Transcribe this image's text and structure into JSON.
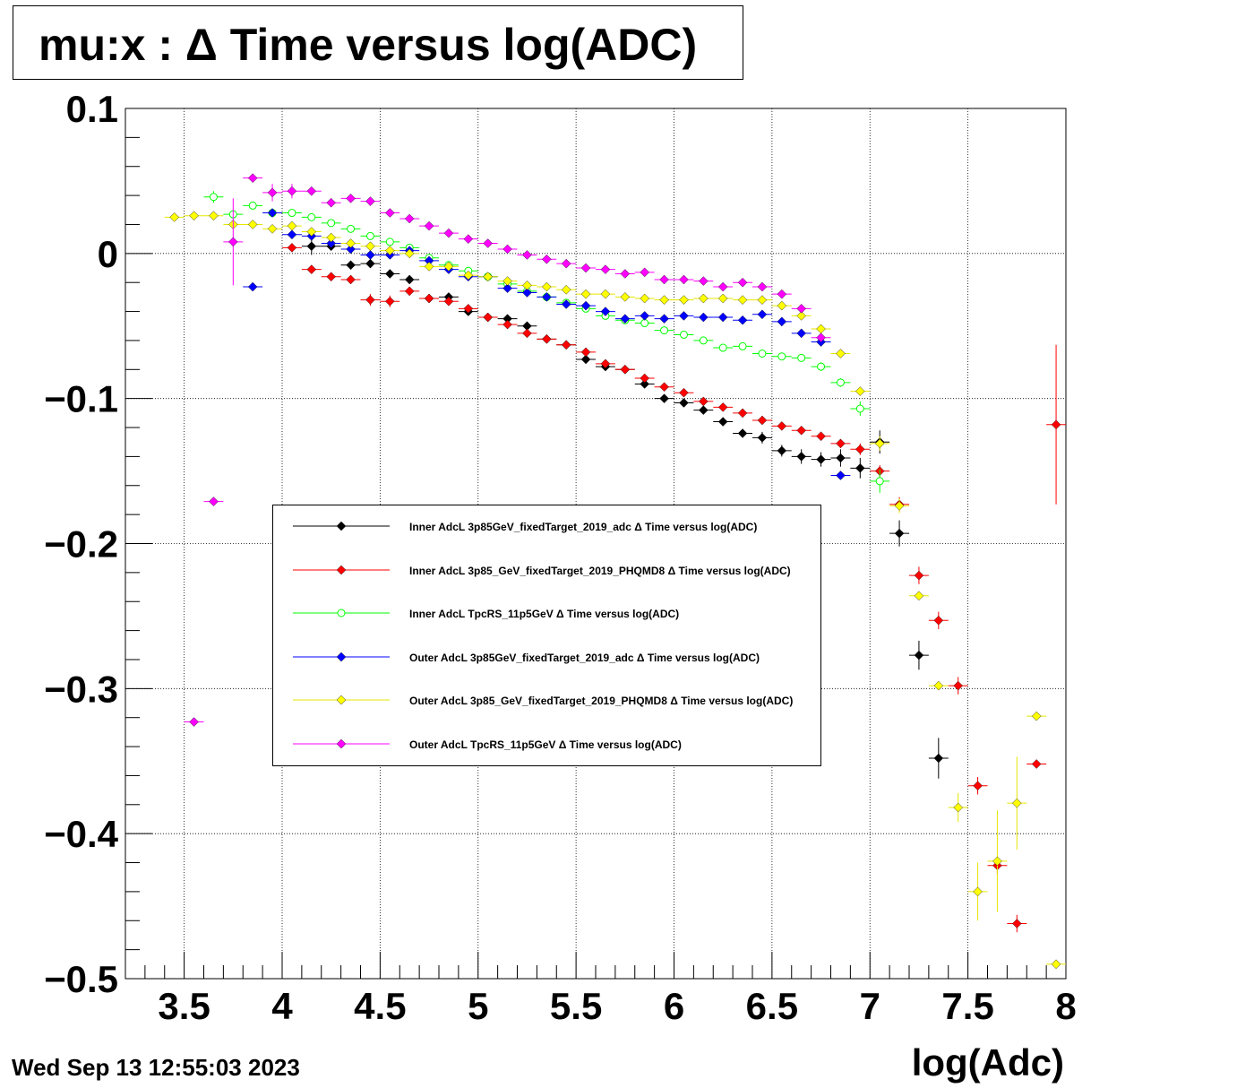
{
  "title": "mu:x : Δ Time versus log(ADC)",
  "timestamp": "Wed Sep 13 12:55:03 2023",
  "chart_data": {
    "type": "scatter",
    "title": "mu:x : Δ Time versus log(ADC)",
    "xlabel": "log(Adc)",
    "ylabel": "",
    "xlim": [
      3.2,
      8.0
    ],
    "ylim": [
      -0.5,
      0.1
    ],
    "grid": true,
    "legend_position": "center",
    "x_ticks": [
      3.5,
      4,
      4.5,
      5,
      5.5,
      6,
      6.5,
      7,
      7.5,
      8
    ],
    "x_tick_labels": [
      "3.5",
      "4",
      "4.5",
      "5",
      "5.5",
      "6",
      "6.5",
      "7",
      "7.5",
      "8"
    ],
    "y_ticks": [
      0.1,
      0,
      -0.1,
      -0.2,
      -0.3,
      -0.4,
      -0.5
    ],
    "y_tick_labels": [
      "0.1",
      "0",
      "−0.1",
      "−0.2",
      "−0.3",
      "−0.4",
      "−0.5"
    ],
    "series": [
      {
        "name": "Inner AdcL 3p85GeV_fixedTarget_2019_adc Δ Time versus log(ADC)",
        "color": "#000000",
        "marker": "filled-diamond",
        "x": [
          4.15,
          4.25,
          4.35,
          4.45,
          4.55,
          4.65,
          4.75,
          4.85,
          4.95,
          5.05,
          5.15,
          5.25,
          5.35,
          5.45,
          5.55,
          5.65,
          5.75,
          5.85,
          5.95,
          6.05,
          6.15,
          6.25,
          6.35,
          6.45,
          6.55,
          6.65,
          6.75,
          6.85,
          6.95,
          7.05,
          7.15,
          7.25,
          7.35
        ],
        "y": [
          0.005,
          0.005,
          -0.008,
          -0.007,
          -0.014,
          -0.018,
          -0.031,
          -0.03,
          -0.04,
          -0.044,
          -0.045,
          -0.05,
          -0.059,
          -0.063,
          -0.073,
          -0.078,
          -0.08,
          -0.09,
          -0.1,
          -0.103,
          -0.108,
          -0.116,
          -0.124,
          -0.127,
          -0.136,
          -0.14,
          -0.142,
          -0.141,
          -0.148,
          -0.13,
          -0.193,
          -0.277,
          -0.348
        ],
        "yerr": [
          0.006,
          0.003,
          0.003,
          0.003,
          0.003,
          0.003,
          0.003,
          0.002,
          0.002,
          0.002,
          0.002,
          0.002,
          0.002,
          0.002,
          0.002,
          0.002,
          0.002,
          0.002,
          0.002,
          0.002,
          0.002,
          0.003,
          0.003,
          0.004,
          0.004,
          0.005,
          0.005,
          0.006,
          0.007,
          0.008,
          0.009,
          0.01,
          0.014
        ]
      },
      {
        "name": "Inner AdcL 3p85_GeV_fixedTarget_2019_PHQMD8 Δ Time versus log(ADC)",
        "color": "#ff0000",
        "marker": "filled-diamond",
        "x": [
          4.05,
          4.15,
          4.25,
          4.35,
          4.45,
          4.55,
          4.65,
          4.75,
          4.85,
          4.95,
          5.05,
          5.15,
          5.25,
          5.35,
          5.45,
          5.55,
          5.65,
          5.75,
          5.85,
          5.95,
          6.05,
          6.15,
          6.25,
          6.35,
          6.45,
          6.55,
          6.65,
          6.75,
          6.85,
          6.95,
          7.05,
          7.15,
          7.25,
          7.35,
          7.45,
          7.55,
          7.65,
          7.75,
          7.85,
          7.95
        ],
        "y": [
          0.004,
          -0.011,
          -0.016,
          -0.018,
          -0.032,
          -0.033,
          -0.026,
          -0.031,
          -0.033,
          -0.038,
          -0.044,
          -0.049,
          -0.055,
          -0.059,
          -0.063,
          -0.068,
          -0.076,
          -0.08,
          -0.086,
          -0.092,
          -0.096,
          -0.102,
          -0.106,
          -0.11,
          -0.115,
          -0.119,
          -0.122,
          -0.126,
          -0.131,
          -0.135,
          -0.15,
          -0.173,
          -0.222,
          -0.253,
          -0.298,
          -0.367,
          -0.422,
          -0.462,
          -0.352,
          -0.118
        ],
        "yerr": [
          0.003,
          0.003,
          0.003,
          0.003,
          0.004,
          0.004,
          0.003,
          0.003,
          0.003,
          0.002,
          0.002,
          0.002,
          0.002,
          0.002,
          0.002,
          0.002,
          0.002,
          0.002,
          0.002,
          0.002,
          0.002,
          0.002,
          0.002,
          0.002,
          0.002,
          0.002,
          0.002,
          0.003,
          0.003,
          0.004,
          0.004,
          0.005,
          0.006,
          0.006,
          0.006,
          0.006,
          0.006,
          0.006,
          0.003,
          0.055
        ]
      },
      {
        "name": "Inner AdcL TpcRS_11p5GeV Δ Time versus log(ADC)",
        "color": "#00ff00",
        "marker": "open-circle",
        "x": [
          3.65,
          3.75,
          3.85,
          3.95,
          4.05,
          4.15,
          4.25,
          4.35,
          4.45,
          4.55,
          4.65,
          4.75,
          4.85,
          4.95,
          5.05,
          5.15,
          5.25,
          5.35,
          5.45,
          5.55,
          5.65,
          5.75,
          5.85,
          5.95,
          6.05,
          6.15,
          6.25,
          6.35,
          6.45,
          6.55,
          6.65,
          6.75,
          6.85,
          6.95,
          7.05
        ],
        "y": [
          0.039,
          0.027,
          0.033,
          0.028,
          0.028,
          0.025,
          0.021,
          0.017,
          0.012,
          0.008,
          0.004,
          -0.003,
          -0.008,
          -0.012,
          -0.016,
          -0.021,
          -0.026,
          -0.03,
          -0.034,
          -0.038,
          -0.043,
          -0.046,
          -0.048,
          -0.053,
          -0.056,
          -0.06,
          -0.065,
          -0.064,
          -0.069,
          -0.071,
          -0.072,
          -0.078,
          -0.089,
          -0.107,
          -0.157
        ],
        "yerr": [
          0.004,
          0.003,
          0.002,
          0.002,
          0.002,
          0.002,
          0.002,
          0.002,
          0.002,
          0.002,
          0.002,
          0.002,
          0.002,
          0.002,
          0.002,
          0.002,
          0.002,
          0.002,
          0.002,
          0.002,
          0.002,
          0.002,
          0.002,
          0.002,
          0.002,
          0.002,
          0.002,
          0.002,
          0.002,
          0.002,
          0.002,
          0.003,
          0.003,
          0.005,
          0.008
        ]
      },
      {
        "name": "Outer AdcL 3p85GeV_fixedTarget_2019_adc Δ Time versus log(ADC)",
        "color": "#0000ff",
        "marker": "filled-diamond",
        "x": [
          3.85,
          3.95,
          4.05,
          4.15,
          4.25,
          4.35,
          4.45,
          4.55,
          4.65,
          4.75,
          4.85,
          4.95,
          5.05,
          5.15,
          5.25,
          5.35,
          5.45,
          5.55,
          5.65,
          5.75,
          5.85,
          5.95,
          6.05,
          6.15,
          6.25,
          6.35,
          6.45,
          6.55,
          6.65,
          6.75,
          6.85
        ],
        "y": [
          -0.023,
          0.028,
          0.013,
          0.012,
          0.007,
          0.003,
          -0.001,
          -0.001,
          0.002,
          -0.005,
          -0.011,
          -0.016,
          -0.016,
          -0.024,
          -0.027,
          -0.03,
          -0.035,
          -0.036,
          -0.04,
          -0.045,
          -0.043,
          -0.045,
          -0.043,
          -0.044,
          -0.044,
          -0.046,
          -0.042,
          -0.047,
          -0.055,
          -0.061,
          -0.153
        ],
        "yerr": [
          0.002,
          0.002,
          0.002,
          0.002,
          0.002,
          0.002,
          0.002,
          0.002,
          0.002,
          0.002,
          0.002,
          0.002,
          0.002,
          0.002,
          0.002,
          0.002,
          0.002,
          0.002,
          0.002,
          0.002,
          0.002,
          0.002,
          0.002,
          0.002,
          0.002,
          0.002,
          0.002,
          0.003,
          0.003,
          0.003,
          0.002
        ]
      },
      {
        "name": "Outer AdcL 3p85_GeV_fixedTarget_2019_PHQMD8 Δ Time versus log(ADC)",
        "color": "#ffff00",
        "marker": "filled-diamond",
        "x": [
          3.45,
          3.55,
          3.65,
          3.75,
          3.85,
          3.95,
          4.05,
          4.15,
          4.25,
          4.35,
          4.45,
          4.55,
          4.65,
          4.75,
          4.85,
          4.95,
          5.05,
          5.15,
          5.25,
          5.35,
          5.45,
          5.55,
          5.65,
          5.75,
          5.85,
          5.95,
          6.05,
          6.15,
          6.25,
          6.35,
          6.45,
          6.55,
          6.65,
          6.75,
          6.85,
          6.95,
          7.05,
          7.15,
          7.25,
          7.35,
          7.45,
          7.55,
          7.65,
          7.75,
          7.85,
          7.95
        ],
        "y": [
          0.025,
          0.026,
          0.026,
          0.02,
          0.02,
          0.017,
          0.019,
          0.015,
          0.011,
          0.007,
          0.005,
          0.002,
          0.0,
          -0.009,
          -0.009,
          -0.015,
          -0.016,
          -0.019,
          -0.022,
          -0.023,
          -0.025,
          -0.028,
          -0.028,
          -0.03,
          -0.031,
          -0.032,
          -0.032,
          -0.031,
          -0.031,
          -0.032,
          -0.032,
          -0.036,
          -0.043,
          -0.052,
          -0.069,
          -0.095,
          -0.131,
          -0.174,
          -0.236,
          -0.298,
          -0.382,
          -0.44,
          -0.419,
          -0.379,
          -0.319,
          -0.49
        ],
        "yerr": [
          0.003,
          0.003,
          0.003,
          0.002,
          0.002,
          0.002,
          0.002,
          0.002,
          0.002,
          0.002,
          0.002,
          0.002,
          0.002,
          0.002,
          0.002,
          0.002,
          0.002,
          0.002,
          0.002,
          0.002,
          0.002,
          0.002,
          0.002,
          0.002,
          0.002,
          0.002,
          0.002,
          0.002,
          0.002,
          0.002,
          0.002,
          0.002,
          0.002,
          0.002,
          0.002,
          0.002,
          0.005,
          0.005,
          0.003,
          0.003,
          0.01,
          0.02,
          0.035,
          0.032,
          0.003,
          0.003
        ]
      },
      {
        "name": "Outer AdcL TpcRS_11p5GeV Δ Time versus log(ADC)",
        "color": "#ff00ff",
        "marker": "filled-diamond",
        "x": [
          3.55,
          3.65,
          3.75,
          3.85,
          3.95,
          4.05,
          4.15,
          4.25,
          4.35,
          4.45,
          4.55,
          4.65,
          4.75,
          4.85,
          4.95,
          5.05,
          5.15,
          5.25,
          5.35,
          5.45,
          5.55,
          5.65,
          5.75,
          5.85,
          5.95,
          6.05,
          6.15,
          6.25,
          6.35,
          6.45,
          6.55,
          6.65,
          6.75
        ],
        "y": [
          -0.323,
          -0.171,
          0.008,
          0.052,
          0.042,
          0.043,
          0.043,
          0.035,
          0.038,
          0.036,
          0.028,
          0.024,
          0.019,
          0.014,
          0.01,
          0.007,
          0.003,
          -0.001,
          -0.004,
          -0.007,
          -0.01,
          -0.011,
          -0.014,
          -0.013,
          -0.018,
          -0.018,
          -0.019,
          -0.023,
          -0.02,
          -0.023,
          -0.028,
          -0.038,
          -0.058
        ],
        "yerr": [
          0.002,
          0.002,
          0.03,
          0.003,
          0.006,
          0.005,
          0.003,
          0.003,
          0.002,
          0.002,
          0.002,
          0.002,
          0.002,
          0.002,
          0.002,
          0.002,
          0.002,
          0.002,
          0.002,
          0.002,
          0.002,
          0.002,
          0.002,
          0.002,
          0.002,
          0.002,
          0.002,
          0.002,
          0.002,
          0.002,
          0.002,
          0.002,
          0.003
        ]
      }
    ]
  }
}
